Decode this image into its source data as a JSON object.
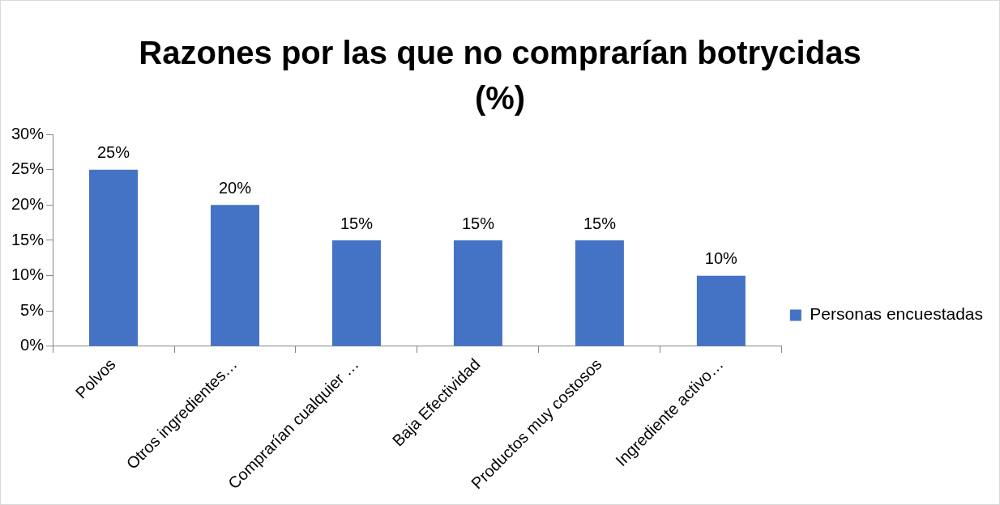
{
  "chart_data": {
    "type": "bar",
    "title": "Razones por las que no comprarían botrycidas (%)",
    "categories": [
      "Polvos",
      "Otros ingredientes…",
      "Comprarían cualquier …",
      "Baja Efectividad",
      "Productos muy costosos",
      "Ingrediente activo…"
    ],
    "series": [
      {
        "name": "Personas encuestadas",
        "color": "#4472c4",
        "values": [
          25,
          20,
          15,
          15,
          15,
          10
        ],
        "value_labels": [
          "25%",
          "20%",
          "15%",
          "15%",
          "15%",
          "10%"
        ]
      }
    ],
    "ylim": [
      0,
      30
    ],
    "yticks": [
      {
        "value": 0,
        "label": "0%"
      },
      {
        "value": 5,
        "label": "5%"
      },
      {
        "value": 10,
        "label": "10%"
      },
      {
        "value": 15,
        "label": "15%"
      },
      {
        "value": 20,
        "label": "20%"
      },
      {
        "value": 25,
        "label": "25%"
      },
      {
        "value": 30,
        "label": "30%"
      }
    ],
    "grid": false,
    "legend": "right"
  }
}
